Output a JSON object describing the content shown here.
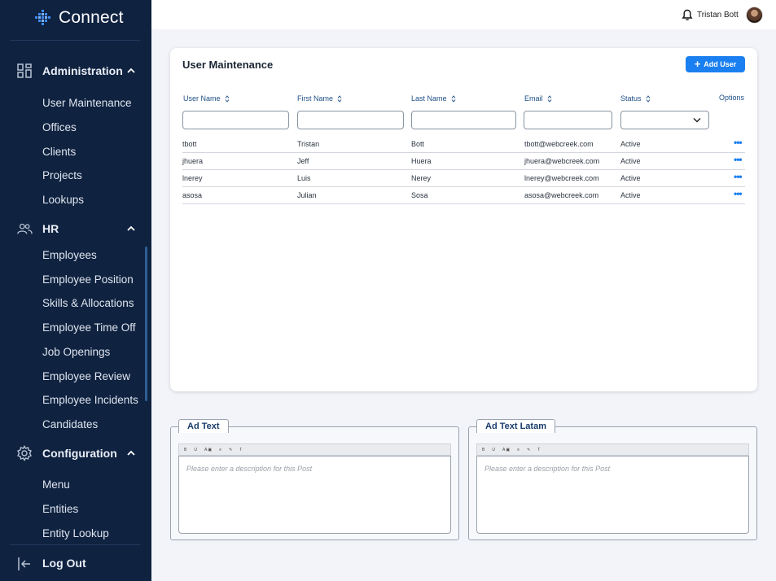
{
  "app": {
    "name": "Connect"
  },
  "sidebar": {
    "sections": [
      {
        "label": "Administration",
        "items": [
          "User Maintenance",
          "Offices",
          "Clients",
          "Projects",
          "Lookups"
        ]
      },
      {
        "label": "HR",
        "items": [
          "Employees",
          "Employee Position",
          "Skills & Allocations",
          "Employee Time Off",
          "Job Openings",
          "Employee Review",
          "Employee Incidents",
          "Candidates"
        ]
      },
      {
        "label": "Configuration",
        "items": [
          "Menu",
          "Entities",
          "Entity Lookup"
        ]
      }
    ],
    "logout_label": "Log Out"
  },
  "topbar": {
    "user_name": "Tristan Bott"
  },
  "card": {
    "title": "User Maintenance",
    "add_user_label": "Add User",
    "columns": [
      "User Name",
      "First Name",
      "Last Name",
      "Email",
      "Status"
    ],
    "options_label": "Options",
    "rows": [
      [
        "tbott",
        "Tristan",
        "Bott",
        "tbott@webcreek.com",
        "Active"
      ],
      [
        "jhuera",
        "Jeff",
        "Huera",
        "jhuera@webcreek.com",
        "Active"
      ],
      [
        "lnerey",
        "Luis",
        "Nerey",
        "lnerey@webcreek.com",
        "Active"
      ],
      [
        "asosa",
        "Julian",
        "Sosa",
        "asosa@webcreek.com",
        "Active"
      ]
    ]
  },
  "editors": [
    {
      "label": "Ad Text",
      "placeholder": "Please enter a description for this Post"
    },
    {
      "label": "Ad Text Latam",
      "placeholder": "Please enter a description for this Post"
    }
  ],
  "colors": {
    "sidebar_bg": "#0f2240",
    "accent": "#1a7ff0",
    "header_text": "#1e4f86",
    "page_bg": "#f2f4f9"
  }
}
